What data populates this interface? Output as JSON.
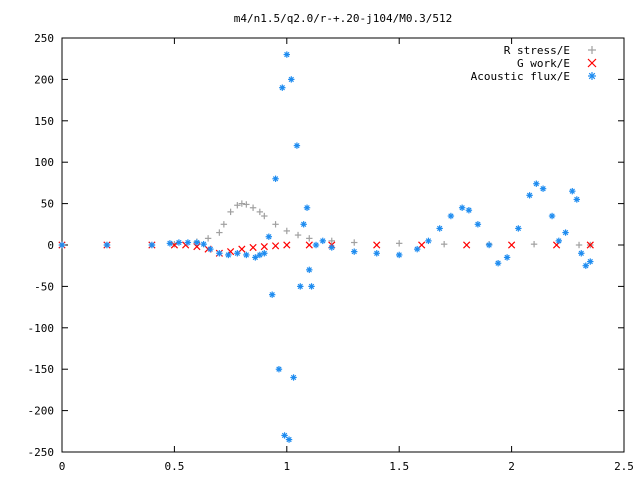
{
  "chart_data": {
    "type": "scatter",
    "title": "m4/n1.5/q2.0/r-+.20-j104/M0.3/512",
    "xlabel": "",
    "ylabel": "",
    "xlim": [
      0,
      2.5
    ],
    "ylim": [
      -250,
      250
    ],
    "x_ticks": [
      "0",
      "0.5",
      "1",
      "1.5",
      "2",
      "2.5"
    ],
    "y_ticks": [
      "250",
      "200",
      "150",
      "100",
      "50",
      "0",
      "-50",
      "-100",
      "-150",
      "-200",
      "-250"
    ],
    "grid": false,
    "legend_position": "top-right",
    "series": [
      {
        "name": "R stress/E",
        "color": "#a0a0a0",
        "marker": "+",
        "x": [
          0.0,
          0.2,
          0.4,
          0.5,
          0.6,
          0.65,
          0.7,
          0.72,
          0.75,
          0.78,
          0.8,
          0.82,
          0.85,
          0.88,
          0.9,
          0.95,
          1.0,
          1.05,
          1.1,
          1.2,
          1.3,
          1.5,
          1.7,
          1.9,
          2.1,
          2.3,
          2.35
        ],
        "y": [
          0,
          0,
          0,
          1,
          4,
          8,
          15,
          25,
          40,
          48,
          50,
          49,
          45,
          40,
          35,
          25,
          17,
          12,
          8,
          5,
          3,
          2,
          1,
          1,
          1,
          0,
          0
        ]
      },
      {
        "name": "G work/E",
        "color": "#ff0000",
        "marker": "x",
        "x": [
          0.0,
          0.2,
          0.4,
          0.5,
          0.55,
          0.6,
          0.65,
          0.7,
          0.75,
          0.8,
          0.85,
          0.9,
          0.95,
          1.0,
          1.1,
          1.2,
          1.4,
          1.6,
          1.8,
          2.0,
          2.2,
          2.35
        ],
        "y": [
          0,
          0,
          0,
          0,
          0,
          -2,
          -5,
          -10,
          -8,
          -5,
          -3,
          -2,
          -1,
          0,
          0,
          0,
          0,
          0,
          0,
          0,
          0,
          0
        ]
      },
      {
        "name": "Acoustic flux/E",
        "color": "#1e8cf0",
        "marker": "*",
        "x": [
          0.0,
          0.2,
          0.4,
          0.48,
          0.52,
          0.56,
          0.6,
          0.63,
          0.66,
          0.7,
          0.74,
          0.78,
          0.82,
          0.86,
          0.88,
          0.9,
          0.92,
          0.935,
          0.95,
          0.965,
          0.98,
          0.99,
          1.0,
          1.01,
          1.02,
          1.03,
          1.045,
          1.06,
          1.075,
          1.09,
          1.1,
          1.11,
          1.13,
          1.16,
          1.2,
          1.3,
          1.4,
          1.5,
          1.58,
          1.63,
          1.68,
          1.73,
          1.78,
          1.81,
          1.85,
          1.9,
          1.94,
          1.98,
          2.03,
          2.08,
          2.11,
          2.14,
          2.18,
          2.21,
          2.24,
          2.27,
          2.29,
          2.31,
          2.33,
          2.35
        ],
        "y": [
          0,
          0,
          0,
          2,
          3,
          3,
          3,
          1,
          -5,
          -10,
          -12,
          -10,
          -12,
          -15,
          -12,
          -10,
          10,
          -60,
          80,
          -150,
          190,
          -230,
          230,
          -235,
          200,
          -160,
          120,
          -50,
          25,
          45,
          -30,
          -50,
          0,
          5,
          -3,
          -8,
          -10,
          -12,
          -5,
          5,
          20,
          35,
          45,
          42,
          25,
          0,
          -22,
          -15,
          20,
          60,
          74,
          68,
          35,
          5,
          15,
          65,
          55,
          -10,
          -25,
          -20
        ]
      }
    ]
  }
}
